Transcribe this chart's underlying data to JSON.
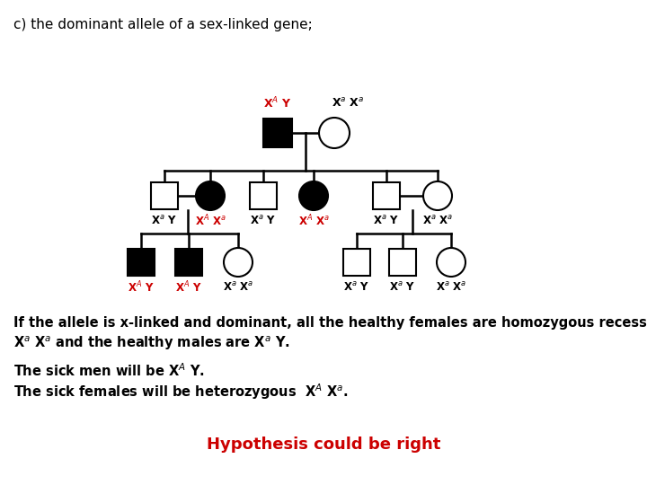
{
  "title": "c) the dominant allele of a sex-linked gene;",
  "bg_color": "#ffffff",
  "text_color": "#000000",
  "red_color": "#cc0000",
  "hypothesis_text": "Hypothesis could be right"
}
